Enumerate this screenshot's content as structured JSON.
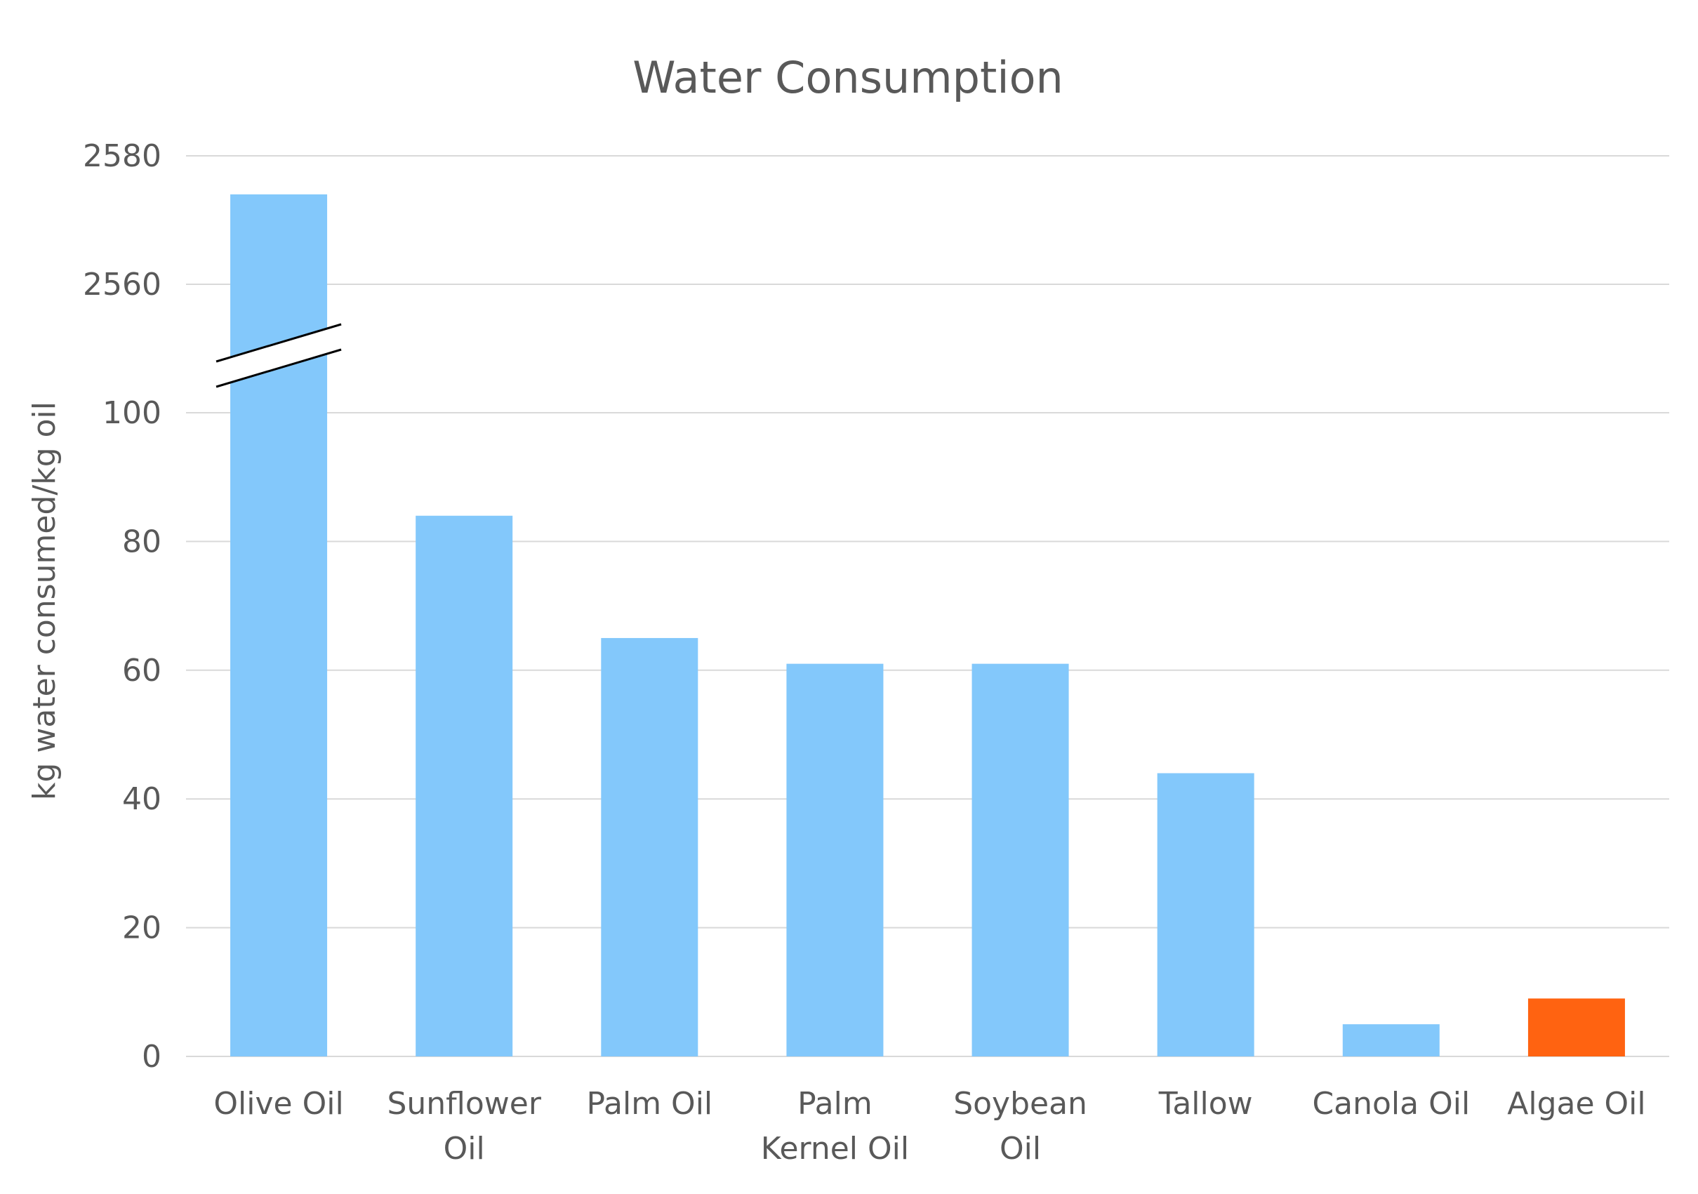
{
  "chart_data": {
    "type": "bar",
    "title": "Water Consumption",
    "xlabel": "",
    "ylabel": "kg water consumed/kg oil",
    "axis_break": {
      "between": [
        100,
        2560
      ]
    },
    "y_ticks_lower": [
      "0",
      "20",
      "40",
      "60",
      "80",
      "100"
    ],
    "y_ticks_upper": [
      "2560",
      "2580"
    ],
    "categories": [
      [
        "Olive Oil"
      ],
      [
        "Sunflower",
        "Oil"
      ],
      [
        "Palm Oil"
      ],
      [
        "Palm",
        "Kernel Oil"
      ],
      [
        "Soybean",
        "Oil"
      ],
      [
        "Tallow"
      ],
      [
        "Canola Oil"
      ],
      [
        "Algae Oil"
      ]
    ],
    "values": [
      2574,
      84,
      65,
      61,
      61,
      44,
      5,
      9
    ],
    "colors": [
      "#83c8fb",
      "#83c8fb",
      "#83c8fb",
      "#83c8fb",
      "#83c8fb",
      "#83c8fb",
      "#83c8fb",
      "#ff6311"
    ],
    "grid": true,
    "legend": "none"
  }
}
